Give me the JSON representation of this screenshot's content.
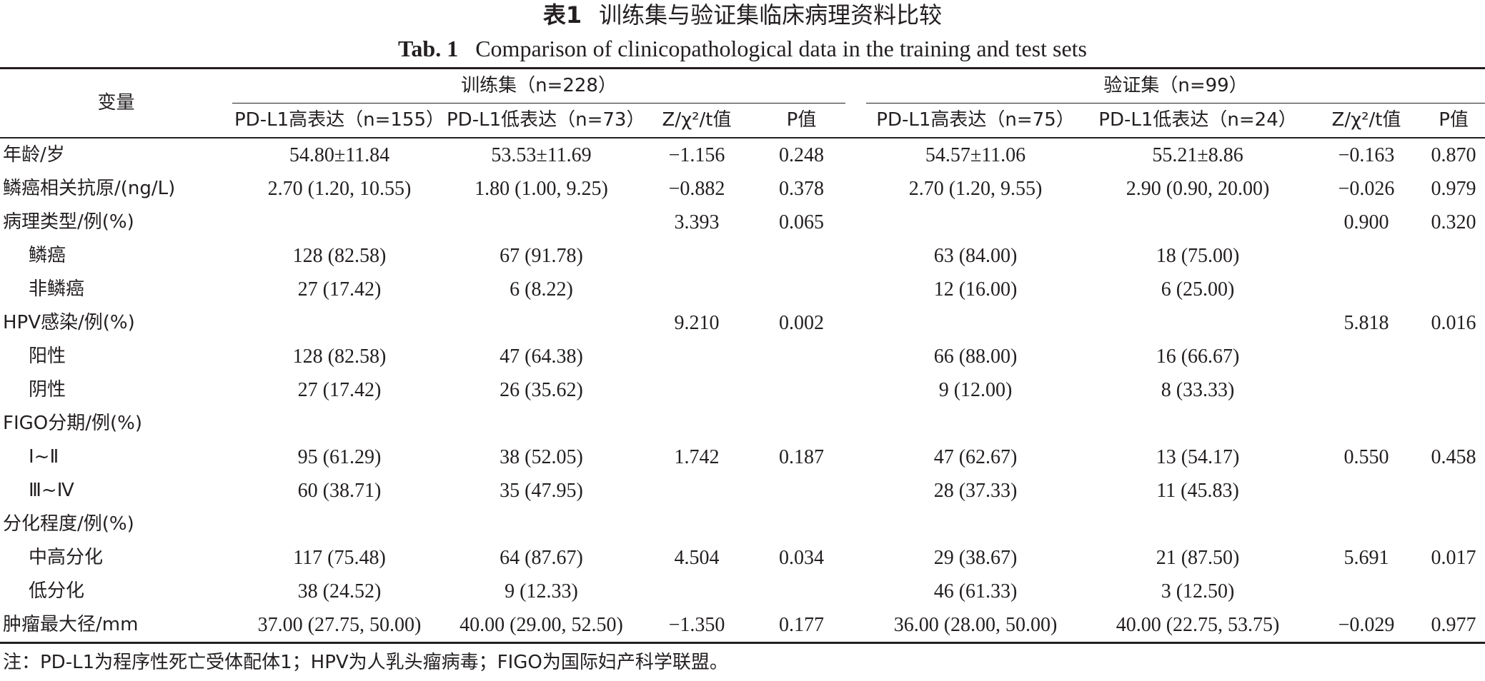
{
  "title": {
    "cn_label": "表1",
    "cn_text": "训练集与验证集临床病理资料比较",
    "en_label": "Tab. 1",
    "en_text": "Comparison of clinicopathological data in the training and test sets"
  },
  "header": {
    "variable": "变量",
    "training_group": "训练集（n=228）",
    "test_group": "验证集（n=99）",
    "columns": [
      "PD-L1高表达（n=155）",
      "PD-L1低表达（n=73）",
      "Z/χ²/t值",
      "P值",
      "PD-L1高表达（n=75）",
      "PD-L1低表达（n=24）",
      "Z/χ²/t值",
      "P值"
    ]
  },
  "rows": [
    {
      "label": "年龄/岁",
      "indent": false,
      "cells": [
        "54.80±11.84",
        "53.53±11.69",
        "−1.156",
        "0.248",
        "54.57±11.06",
        "55.21±8.86",
        "−0.163",
        "0.870"
      ]
    },
    {
      "label": "鳞癌相关抗原/(ng/L)",
      "indent": false,
      "cells": [
        "2.70 (1.20, 10.55)",
        "1.80 (1.00, 9.25)",
        "−0.882",
        "0.378",
        "2.70 (1.20, 9.55)",
        "2.90 (0.90, 20.00)",
        "−0.026",
        "0.979"
      ]
    },
    {
      "label": "病理类型/例(%)",
      "indent": false,
      "cells": [
        "",
        "",
        "3.393",
        "0.065",
        "",
        "",
        "0.900",
        "0.320"
      ]
    },
    {
      "label": "鳞癌",
      "indent": true,
      "cells": [
        "128 (82.58)",
        "67 (91.78)",
        "",
        "",
        "63 (84.00)",
        "18 (75.00)",
        "",
        ""
      ]
    },
    {
      "label": "非鳞癌",
      "indent": true,
      "cells": [
        "27 (17.42)",
        "6 (8.22)",
        "",
        "",
        "12 (16.00)",
        "6 (25.00)",
        "",
        ""
      ]
    },
    {
      "label": "HPV感染/例(%)",
      "indent": false,
      "cells": [
        "",
        "",
        "9.210",
        "0.002",
        "",
        "",
        "5.818",
        "0.016"
      ]
    },
    {
      "label": "阳性",
      "indent": true,
      "cells": [
        "128 (82.58)",
        "47 (64.38)",
        "",
        "",
        "66 (88.00)",
        "16 (66.67)",
        "",
        ""
      ]
    },
    {
      "label": "阴性",
      "indent": true,
      "cells": [
        "27 (17.42)",
        "26 (35.62)",
        "",
        "",
        "9 (12.00)",
        "8 (33.33)",
        "",
        ""
      ]
    },
    {
      "label": "FIGO分期/例(%)",
      "indent": false,
      "cells": [
        "",
        "",
        "",
        "",
        "",
        "",
        "",
        ""
      ]
    },
    {
      "label": "Ⅰ~Ⅱ",
      "indent": true,
      "cells": [
        "95 (61.29)",
        "38 (52.05)",
        "1.742",
        "0.187",
        "47 (62.67)",
        "13 (54.17)",
        "0.550",
        "0.458"
      ]
    },
    {
      "label": "Ⅲ~Ⅳ",
      "indent": true,
      "cells": [
        "60 (38.71)",
        "35 (47.95)",
        "",
        "",
        "28 (37.33)",
        "11 (45.83)",
        "",
        ""
      ]
    },
    {
      "label": "分化程度/例(%)",
      "indent": false,
      "cells": [
        "",
        "",
        "",
        "",
        "",
        "",
        "",
        ""
      ]
    },
    {
      "label": "中高分化",
      "indent": true,
      "cells": [
        "117 (75.48)",
        "64 (87.67)",
        "4.504",
        "0.034",
        "29 (38.67)",
        "21 (87.50)",
        "5.691",
        "0.017"
      ]
    },
    {
      "label": "低分化",
      "indent": true,
      "cells": [
        "38 (24.52)",
        "9 (12.33)",
        "",
        "",
        "46 (61.33)",
        "3 (12.50)",
        "",
        ""
      ]
    },
    {
      "label": "肿瘤最大径/mm",
      "indent": false,
      "cells": [
        "37.00 (27.75, 50.00)",
        "40.00 (29.00, 52.50)",
        "−1.350",
        "0.177",
        "36.00 (28.00, 50.00)",
        "40.00 (22.75, 53.75)",
        "−0.029",
        "0.977"
      ]
    }
  ],
  "note": "注：PD-L1为程序性死亡受体配体1；HPV为人乳头瘤病毒；FIGO为国际妇产科学联盟。"
}
